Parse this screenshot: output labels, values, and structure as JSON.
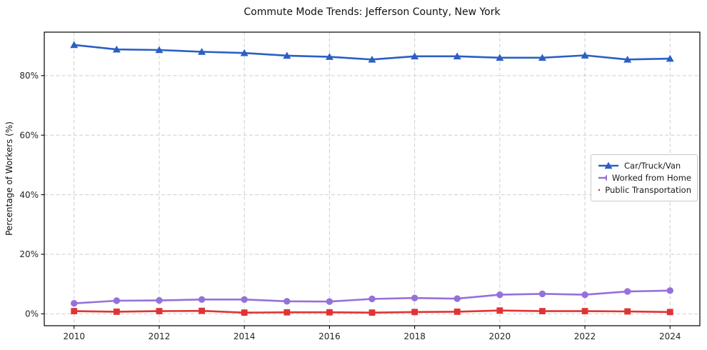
{
  "chart_data": {
    "type": "line",
    "title": "Commute Mode Trends: Jefferson County, New York",
    "xlabel": "",
    "ylabel": "Percentage of Workers (%)",
    "x": [
      2010,
      2011,
      2012,
      2013,
      2014,
      2015,
      2016,
      2017,
      2018,
      2019,
      2020,
      2021,
      2022,
      2023,
      2024
    ],
    "series": [
      {
        "name": "Car/Truck/Van",
        "color": "#2b5fc4",
        "marker": "triangle",
        "values": [
          90.3,
          88.8,
          88.6,
          88.0,
          87.6,
          86.7,
          86.3,
          85.4,
          86.5,
          86.5,
          86.0,
          86.0,
          86.8,
          85.4,
          85.7
        ]
      },
      {
        "name": "Worked from Home",
        "color": "#9571d9",
        "marker": "circle",
        "values": [
          3.5,
          4.4,
          4.5,
          4.8,
          4.8,
          4.2,
          4.1,
          5.0,
          5.3,
          5.1,
          6.4,
          6.7,
          6.4,
          7.5,
          7.8
        ]
      },
      {
        "name": "Public Transportation",
        "color": "#e03434",
        "marker": "square",
        "values": [
          0.9,
          0.7,
          0.9,
          1.0,
          0.4,
          0.5,
          0.5,
          0.4,
          0.6,
          0.7,
          1.1,
          0.9,
          0.9,
          0.8,
          0.6
        ]
      }
    ],
    "xticks": [
      2010,
      2012,
      2014,
      2016,
      2018,
      2020,
      2022,
      2024
    ],
    "yticks": [
      {
        "value": 0,
        "label": "0%"
      },
      {
        "value": 20,
        "label": "20%"
      },
      {
        "value": 40,
        "label": "40%"
      },
      {
        "value": 60,
        "label": "60%"
      },
      {
        "value": 80,
        "label": "80%"
      }
    ],
    "xlim": [
      2009.3,
      2024.7
    ],
    "ylim": [
      -4.0,
      94.6
    ],
    "grid": true,
    "grid_style": "dashed",
    "legend_position": "center-right",
    "colors": {
      "background": "#ffffff",
      "grid": "#cdcdcd",
      "axis": "#000000",
      "tick_label": "#262626",
      "legend_border": "#c9c9c9"
    }
  }
}
